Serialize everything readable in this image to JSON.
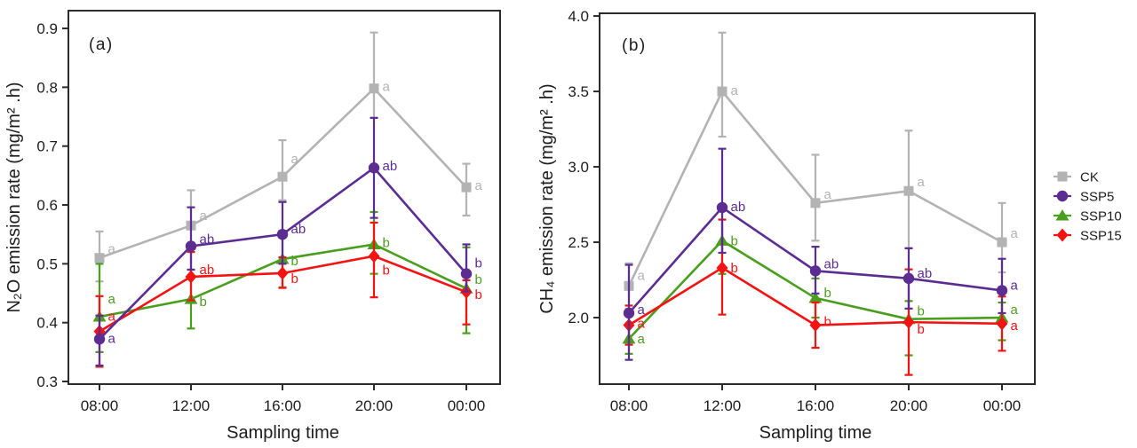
{
  "figure": {
    "background": "#ffffff",
    "legend": {
      "items": [
        {
          "label": "CK",
          "marker": "square",
          "color": "#b3b3b3"
        },
        {
          "label": "SSP5",
          "marker": "circle",
          "color": "#5b2c92"
        },
        {
          "label": "SSP10",
          "marker": "triangle",
          "color": "#4a9e1e"
        },
        {
          "label": "SSP15",
          "marker": "diamond",
          "color": "#f41212"
        }
      ]
    }
  },
  "chart_data": [
    {
      "type": "line",
      "id": "a",
      "panel_label": "(a)",
      "xlabel": "Sampling time",
      "ylabel": "N₂O emission rate (mg/m² .h)",
      "categories": [
        "08:00",
        "12:00",
        "16:00",
        "20:00",
        "00:00"
      ],
      "ylim": [
        0.3,
        0.9
      ],
      "ylim_draw": [
        0.2955,
        0.9302
      ],
      "yticks": [
        0.3,
        0.4,
        0.5,
        0.6,
        0.7,
        0.8,
        0.9
      ],
      "grid": false,
      "legend_position": "outside-right",
      "draw_order": [
        0,
        2,
        3,
        1
      ],
      "series": [
        {
          "name": "CK",
          "color": "#b3b3b3",
          "marker": "square",
          "values": [
            0.51,
            0.565,
            0.648,
            0.798,
            0.63
          ],
          "err_up": [
            0.045,
            0.06,
            0.062,
            0.095,
            0.04
          ],
          "err_down": [
            0.04,
            0.03,
            0.04,
            0.05,
            0.048
          ],
          "point_labels": [
            "a",
            "a",
            "a",
            "a",
            "a"
          ],
          "label_dy": [
            -10,
            -11,
            -20,
            -2,
            -2
          ]
        },
        {
          "name": "SSP5",
          "color": "#5b2c92",
          "marker": "circle",
          "values": [
            0.372,
            0.53,
            0.55,
            0.663,
            0.483
          ],
          "err_up": [
            0.04,
            0.066,
            0.055,
            0.085,
            0.05
          ],
          "err_down": [
            0.045,
            0.04,
            0.05,
            0.085,
            0.03
          ],
          "point_labels": [
            "a",
            "ab",
            "ab",
            "ab",
            "b"
          ],
          "label_dy": [
            -1,
            -8,
            -6,
            -2,
            -12
          ]
        },
        {
          "name": "SSP10",
          "color": "#4a9e1e",
          "marker": "triangle",
          "values": [
            0.41,
            0.44,
            0.508,
            0.533,
            0.458
          ],
          "err_up": [
            0.09,
            0.05,
            0.048,
            0.055,
            0.07
          ],
          "err_down": [
            0.06,
            0.05,
            0.048,
            0.05,
            0.076
          ],
          "point_labels": [
            "a",
            "b",
            "b",
            "b",
            "b"
          ],
          "label_dy": [
            -20,
            3,
            2,
            -2,
            -10
          ]
        },
        {
          "name": "SSP15",
          "color": "#f41212",
          "marker": "diamond",
          "values": [
            0.385,
            0.478,
            0.484,
            0.513,
            0.452
          ],
          "err_up": [
            0.06,
            0.042,
            0.027,
            0.057,
            0.02
          ],
          "err_down": [
            0.06,
            0.04,
            0.025,
            0.07,
            0.055
          ],
          "point_labels": [
            "a",
            "ab",
            "b",
            "b",
            "b"
          ],
          "label_dy": [
            -17,
            -8,
            6,
            16,
            3
          ]
        }
      ]
    },
    {
      "type": "line",
      "id": "b",
      "panel_label": "(b)",
      "xlabel": "Sampling time",
      "ylabel": "CH₄ emission rate (mg/m² .h)",
      "categories": [
        "08:00",
        "12:00",
        "16:00",
        "20:00",
        "00:00"
      ],
      "ylim": [
        2.0,
        4.0
      ],
      "ylim_draw": [
        1.559,
        4.018
      ],
      "yticks": [
        2.0,
        2.5,
        3.0,
        3.5,
        4.0
      ],
      "grid": false,
      "legend_position": "outside-right",
      "draw_order": [
        0,
        2,
        3,
        1
      ],
      "series": [
        {
          "name": "CK",
          "color": "#b3b3b3",
          "marker": "square",
          "values": [
            2.21,
            3.5,
            2.76,
            2.84,
            2.5
          ],
          "err_up": [
            0.15,
            0.39,
            0.32,
            0.4,
            0.26
          ],
          "err_down": [
            0.15,
            0.3,
            0.25,
            0.38,
            0.2
          ],
          "point_labels": [
            "a",
            "a",
            "a",
            "a",
            "a"
          ],
          "label_dy": [
            -12,
            -1,
            -10,
            -10,
            -10
          ]
        },
        {
          "name": "SSP5",
          "color": "#5b2c92",
          "marker": "circle",
          "values": [
            2.03,
            2.73,
            2.31,
            2.26,
            2.18
          ],
          "err_up": [
            0.32,
            0.39,
            0.16,
            0.2,
            0.21
          ],
          "err_down": [
            0.31,
            0.3,
            0.15,
            0.2,
            0.15
          ],
          "point_labels": [
            "a",
            "ab",
            "ab",
            "ab",
            "a"
          ],
          "label_dy": [
            -4,
            -1,
            -8,
            -6,
            -6
          ]
        },
        {
          "name": "SSP10",
          "color": "#4a9e1e",
          "marker": "triangle",
          "values": [
            1.86,
            2.51,
            2.13,
            1.99,
            2.0
          ],
          "err_up": [
            0.1,
            0.2,
            0.13,
            0.12,
            0.1
          ],
          "err_down": [
            0.1,
            0.22,
            0.13,
            0.24,
            0.15
          ],
          "point_labels": [
            "a",
            "b",
            "b",
            "b",
            "a"
          ],
          "label_dy": [
            0,
            0,
            -6,
            -9,
            -9
          ]
        },
        {
          "name": "SSP15",
          "color": "#f41212",
          "marker": "diamond",
          "values": [
            1.95,
            2.33,
            1.95,
            1.97,
            1.96
          ],
          "err_up": [
            0.13,
            0.32,
            0.15,
            0.35,
            0.18
          ],
          "err_down": [
            0.13,
            0.31,
            0.15,
            0.35,
            0.18
          ],
          "point_labels": [
            "a",
            "b",
            "b",
            "b",
            "a"
          ],
          "label_dy": [
            -2,
            0,
            -4,
            8,
            2
          ]
        }
      ]
    }
  ]
}
